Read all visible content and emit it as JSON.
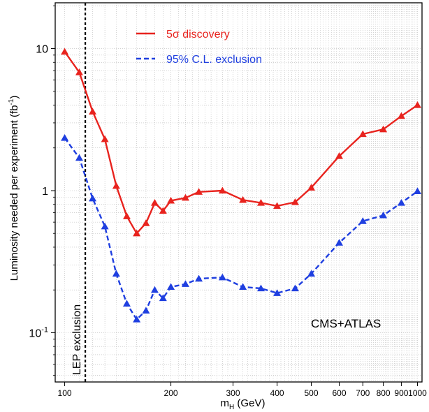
{
  "chart_data": {
    "type": "line",
    "title": "",
    "xlabel": "m",
    "xlabel_sub": "H",
    "xlabel_unit": " (GeV)",
    "ylabel": "Luminosity needed per experiment (fb",
    "ylabel_sup": "-1",
    "ylabel_close": ")",
    "x_scale": "log",
    "y_scale": "log",
    "xlim": [
      94,
      1030
    ],
    "ylim": [
      0.045,
      21
    ],
    "grid": true,
    "legend_placement": "top-left",
    "x_ticks": [
      {
        "value": 100,
        "label": "100"
      },
      {
        "value": 200,
        "label": "200"
      },
      {
        "value": 300,
        "label": "300"
      },
      {
        "value": 400,
        "label": "400"
      },
      {
        "value": 500,
        "label": "500"
      },
      {
        "value": 600,
        "label": "600"
      },
      {
        "value": 700,
        "label": "700"
      },
      {
        "value": 800,
        "label": "800"
      },
      {
        "value": 900,
        "label": "900"
      },
      {
        "value": 1000,
        "label": "1000"
      }
    ],
    "y_ticks": [
      {
        "value": 10,
        "base": "10",
        "exp": ""
      },
      {
        "value": 1,
        "base": "1",
        "exp": ""
      },
      {
        "value": 0.1,
        "base": "10",
        "exp": "-1"
      }
    ],
    "series": [
      {
        "name": "5σ discovery",
        "color": "#e8231e",
        "line_style": "solid",
        "marker": "triangle",
        "x": [
          100,
          110,
          120,
          130,
          140,
          150,
          160,
          170,
          180,
          190,
          200,
          220,
          240,
          280,
          320,
          360,
          400,
          450,
          500,
          600,
          700,
          800,
          900,
          1000
        ],
        "y": [
          9.5,
          6.8,
          3.6,
          2.3,
          1.08,
          0.66,
          0.5,
          0.59,
          0.82,
          0.72,
          0.85,
          0.89,
          0.98,
          1.0,
          0.86,
          0.82,
          0.78,
          0.83,
          1.05,
          1.75,
          2.5,
          2.7,
          3.35,
          4.0
        ]
      },
      {
        "name": "95% C.L. exclusion",
        "color": "#1f3fe0",
        "line_style": "dashed",
        "marker": "triangle",
        "x": [
          100,
          110,
          120,
          130,
          140,
          150,
          160,
          170,
          180,
          190,
          200,
          220,
          240,
          280,
          320,
          360,
          400,
          450,
          500,
          600,
          700,
          800,
          900,
          1000
        ],
        "y": [
          2.35,
          1.7,
          0.88,
          0.56,
          0.26,
          0.16,
          0.124,
          0.143,
          0.2,
          0.175,
          0.21,
          0.22,
          0.24,
          0.245,
          0.21,
          0.205,
          0.19,
          0.205,
          0.26,
          0.43,
          0.61,
          0.67,
          0.82,
          0.99
        ]
      }
    ],
    "annotations": {
      "lep_line_x": 114.4,
      "lep_label": "LEP exclusion",
      "experiment_label": "CMS+ATLAS"
    }
  }
}
